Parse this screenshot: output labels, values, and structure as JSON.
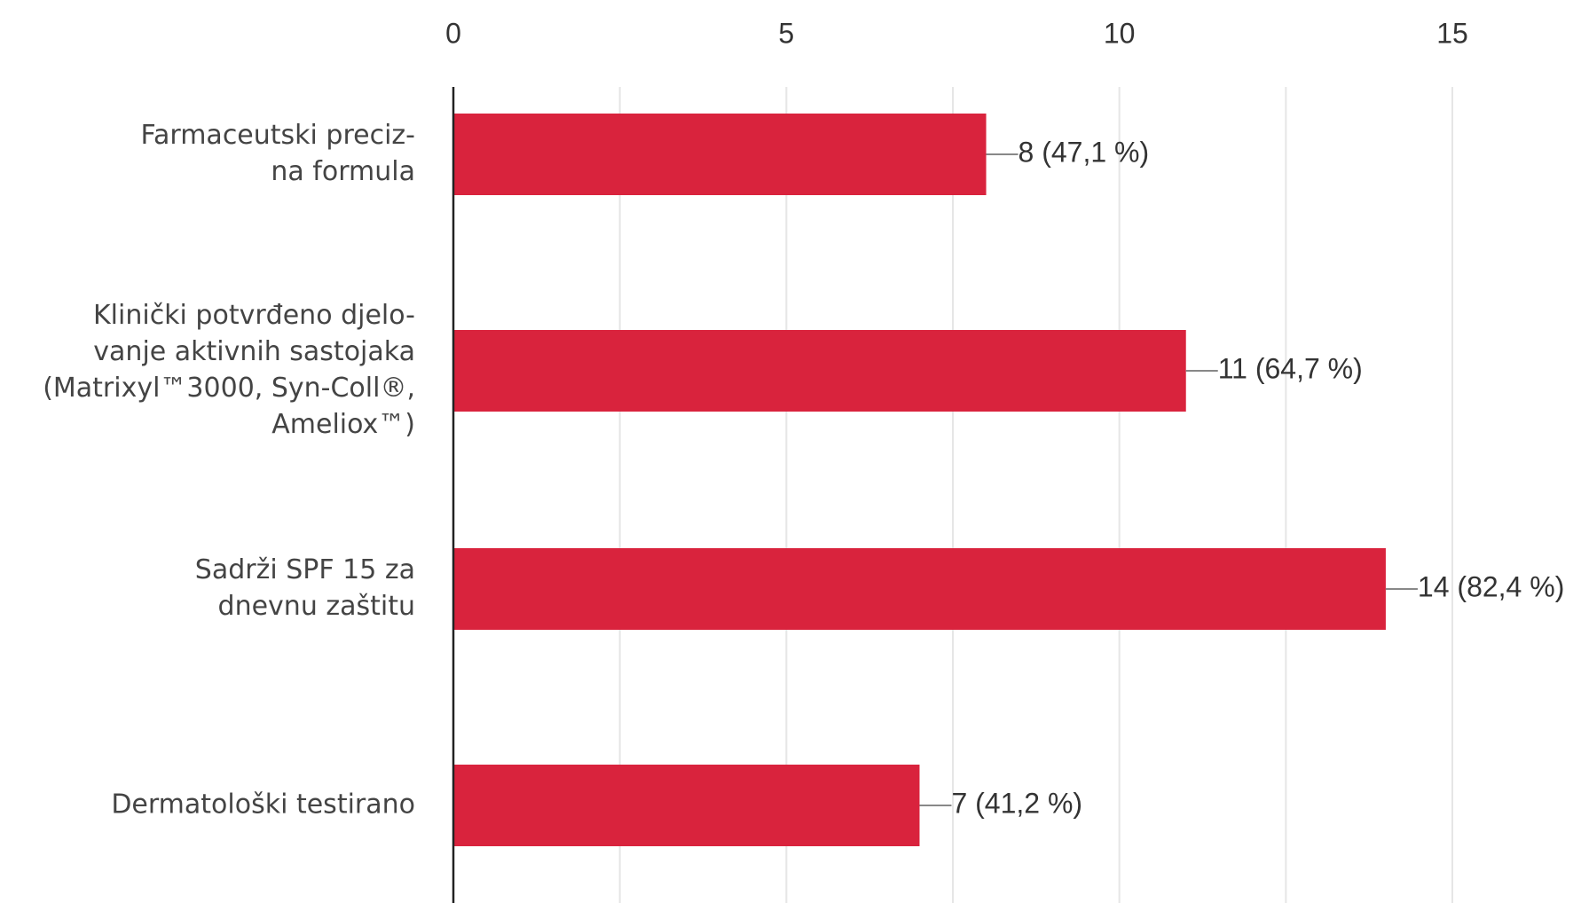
{
  "chart_data": {
    "type": "bar",
    "orientation": "horizontal",
    "title": "",
    "xlabel": "",
    "ylabel": "",
    "xlim": [
      0,
      15
    ],
    "x_ticks": [
      0,
      5,
      10,
      15
    ],
    "x_tick_labels": [
      "0",
      "5",
      "10",
      "15"
    ],
    "minor_gridlines": [
      2.5,
      7.5,
      12.5
    ],
    "x_axis_position": "top",
    "grid": true,
    "legend": "none",
    "bar_color": "#d9233d",
    "categories": [
      [
        "Farmaceutski preciz-",
        "na formula"
      ],
      [
        "Klinički potvrđeno djelo-",
        "vanje aktivnih sastojaka",
        "(Matrixyl™3000, Syn-Coll®,",
        "Ameliox™)"
      ],
      [
        "Sadrži SPF 15 za",
        "dnevnu zaštitu"
      ],
      [
        "Dermatološki testirano"
      ]
    ],
    "values": [
      8,
      11,
      14,
      7
    ],
    "data_labels": [
      "8 (47,1 %)",
      "11 (64,7 %)",
      "14 (82,4 %)",
      "7 (41,2 %)"
    ]
  }
}
